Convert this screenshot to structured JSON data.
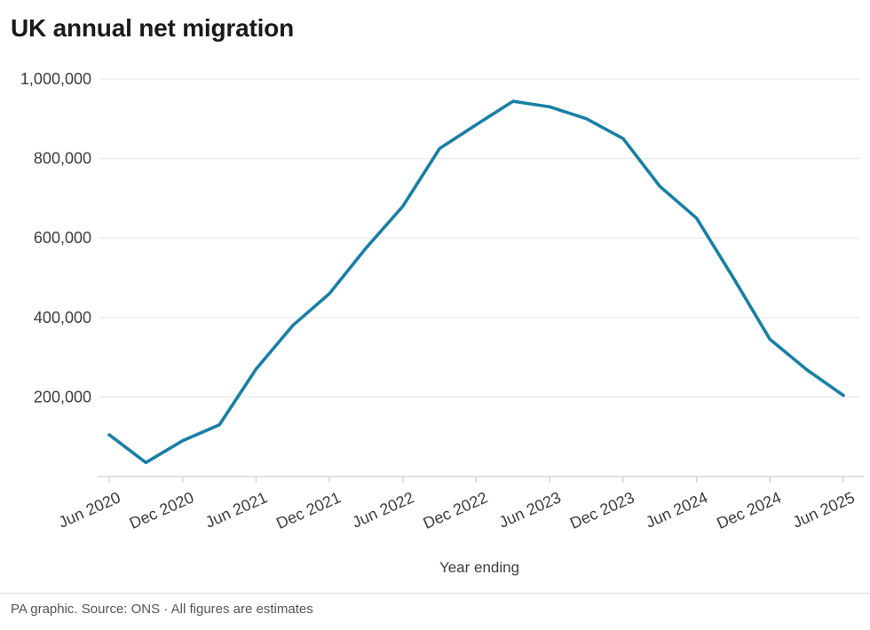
{
  "chart_data": {
    "type": "line",
    "title": "UK annual net migration",
    "xlabel": "Year ending",
    "x": [
      "Jun 2020",
      "Sep 2020",
      "Dec 2020",
      "Mar 2021",
      "Jun 2021",
      "Sep 2021",
      "Dec 2021",
      "Mar 2022",
      "Jun 2022",
      "Sep 2022",
      "Dec 2022",
      "Mar 2023",
      "Jun 2023",
      "Sep 2023",
      "Dec 2023",
      "Mar 2024",
      "Jun 2024",
      "Sep 2024",
      "Dec 2024",
      "Mar 2025",
      "Jun 2025"
    ],
    "values": [
      105000,
      35000,
      90000,
      130000,
      270000,
      380000,
      460000,
      575000,
      680000,
      825000,
      885000,
      944000,
      930000,
      900000,
      850000,
      730000,
      650000,
      500000,
      345000,
      269000,
      204000
    ],
    "x_tick_labels": [
      "Jun 2020",
      "Dec 2020",
      "Jun 2021",
      "Dec 2021",
      "Jun 2022",
      "Dec 2022",
      "Jun 2023",
      "Dec 2023",
      "Jun 2024",
      "Dec 2024",
      "Jun 2025"
    ],
    "y_ticks": [
      200000,
      400000,
      600000,
      800000,
      1000000
    ],
    "y_tick_labels": [
      "200,000",
      "400,000",
      "600,000",
      "800,000",
      "1,000,000"
    ],
    "ylim": [
      0,
      1000000
    ],
    "grid": true,
    "legend": false,
    "line_color": "#1a7fa4",
    "grid_color": "#e9e9e9",
    "axis_color": "#cfcfcf",
    "tick_label_color": "#3d3d3d",
    "footer": "PA graphic. Source: ONS · All figures are estimates"
  }
}
